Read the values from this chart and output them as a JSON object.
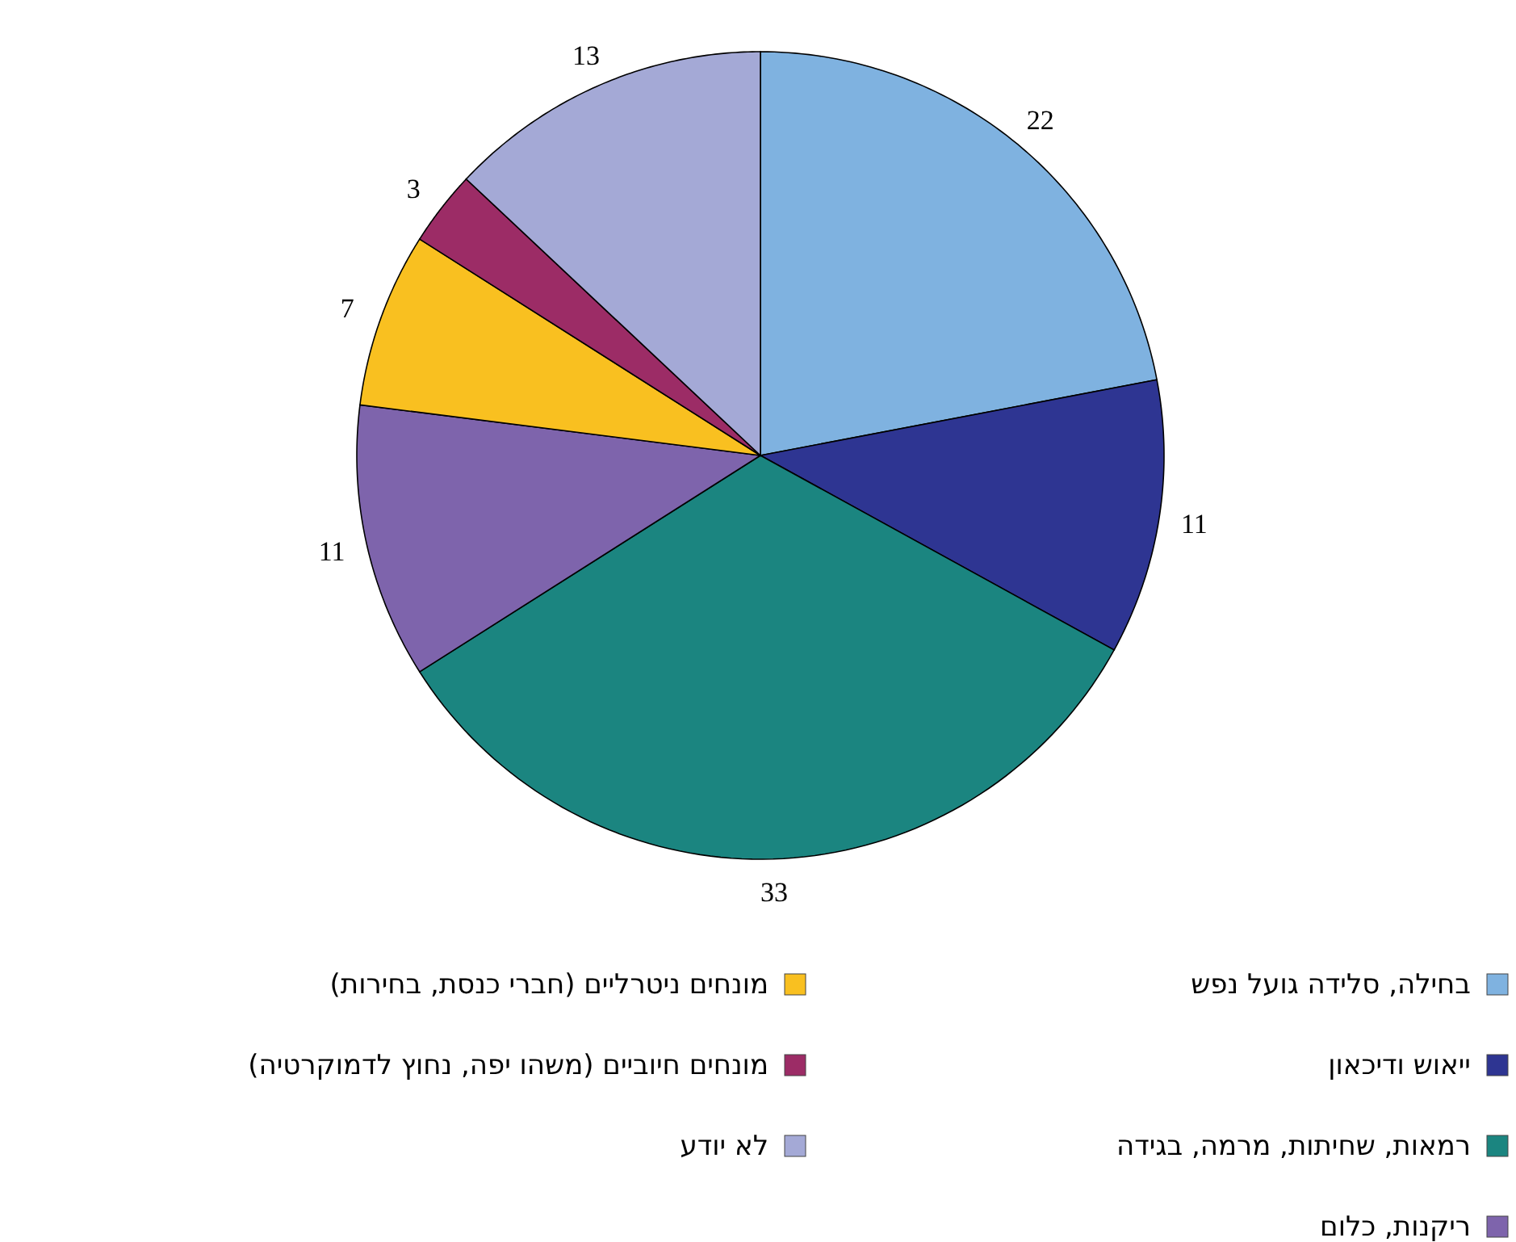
{
  "chart_data": {
    "type": "pie",
    "categories": [
      "בחילה, סלידה גועל נפש",
      "ייאוש ודיכאון",
      "רמאות, שחיתות, מרמה, בגידה",
      "ריקנות, כלום",
      "מונחים ניטרליים (חברי כנסת, בחירות)",
      "מונחים חיוביים (משהו יפה, נחוץ לדמוקרטיה)",
      "לא יודע"
    ],
    "values": [
      22,
      11,
      33,
      11,
      7,
      3,
      13
    ],
    "colors": [
      "#7fb2e0",
      "#2e3592",
      "#1b8580",
      "#7e64ac",
      "#f9c020",
      "#9c2c66",
      "#a4a9d6"
    ],
    "data_labels": true,
    "legend": "bottom"
  }
}
